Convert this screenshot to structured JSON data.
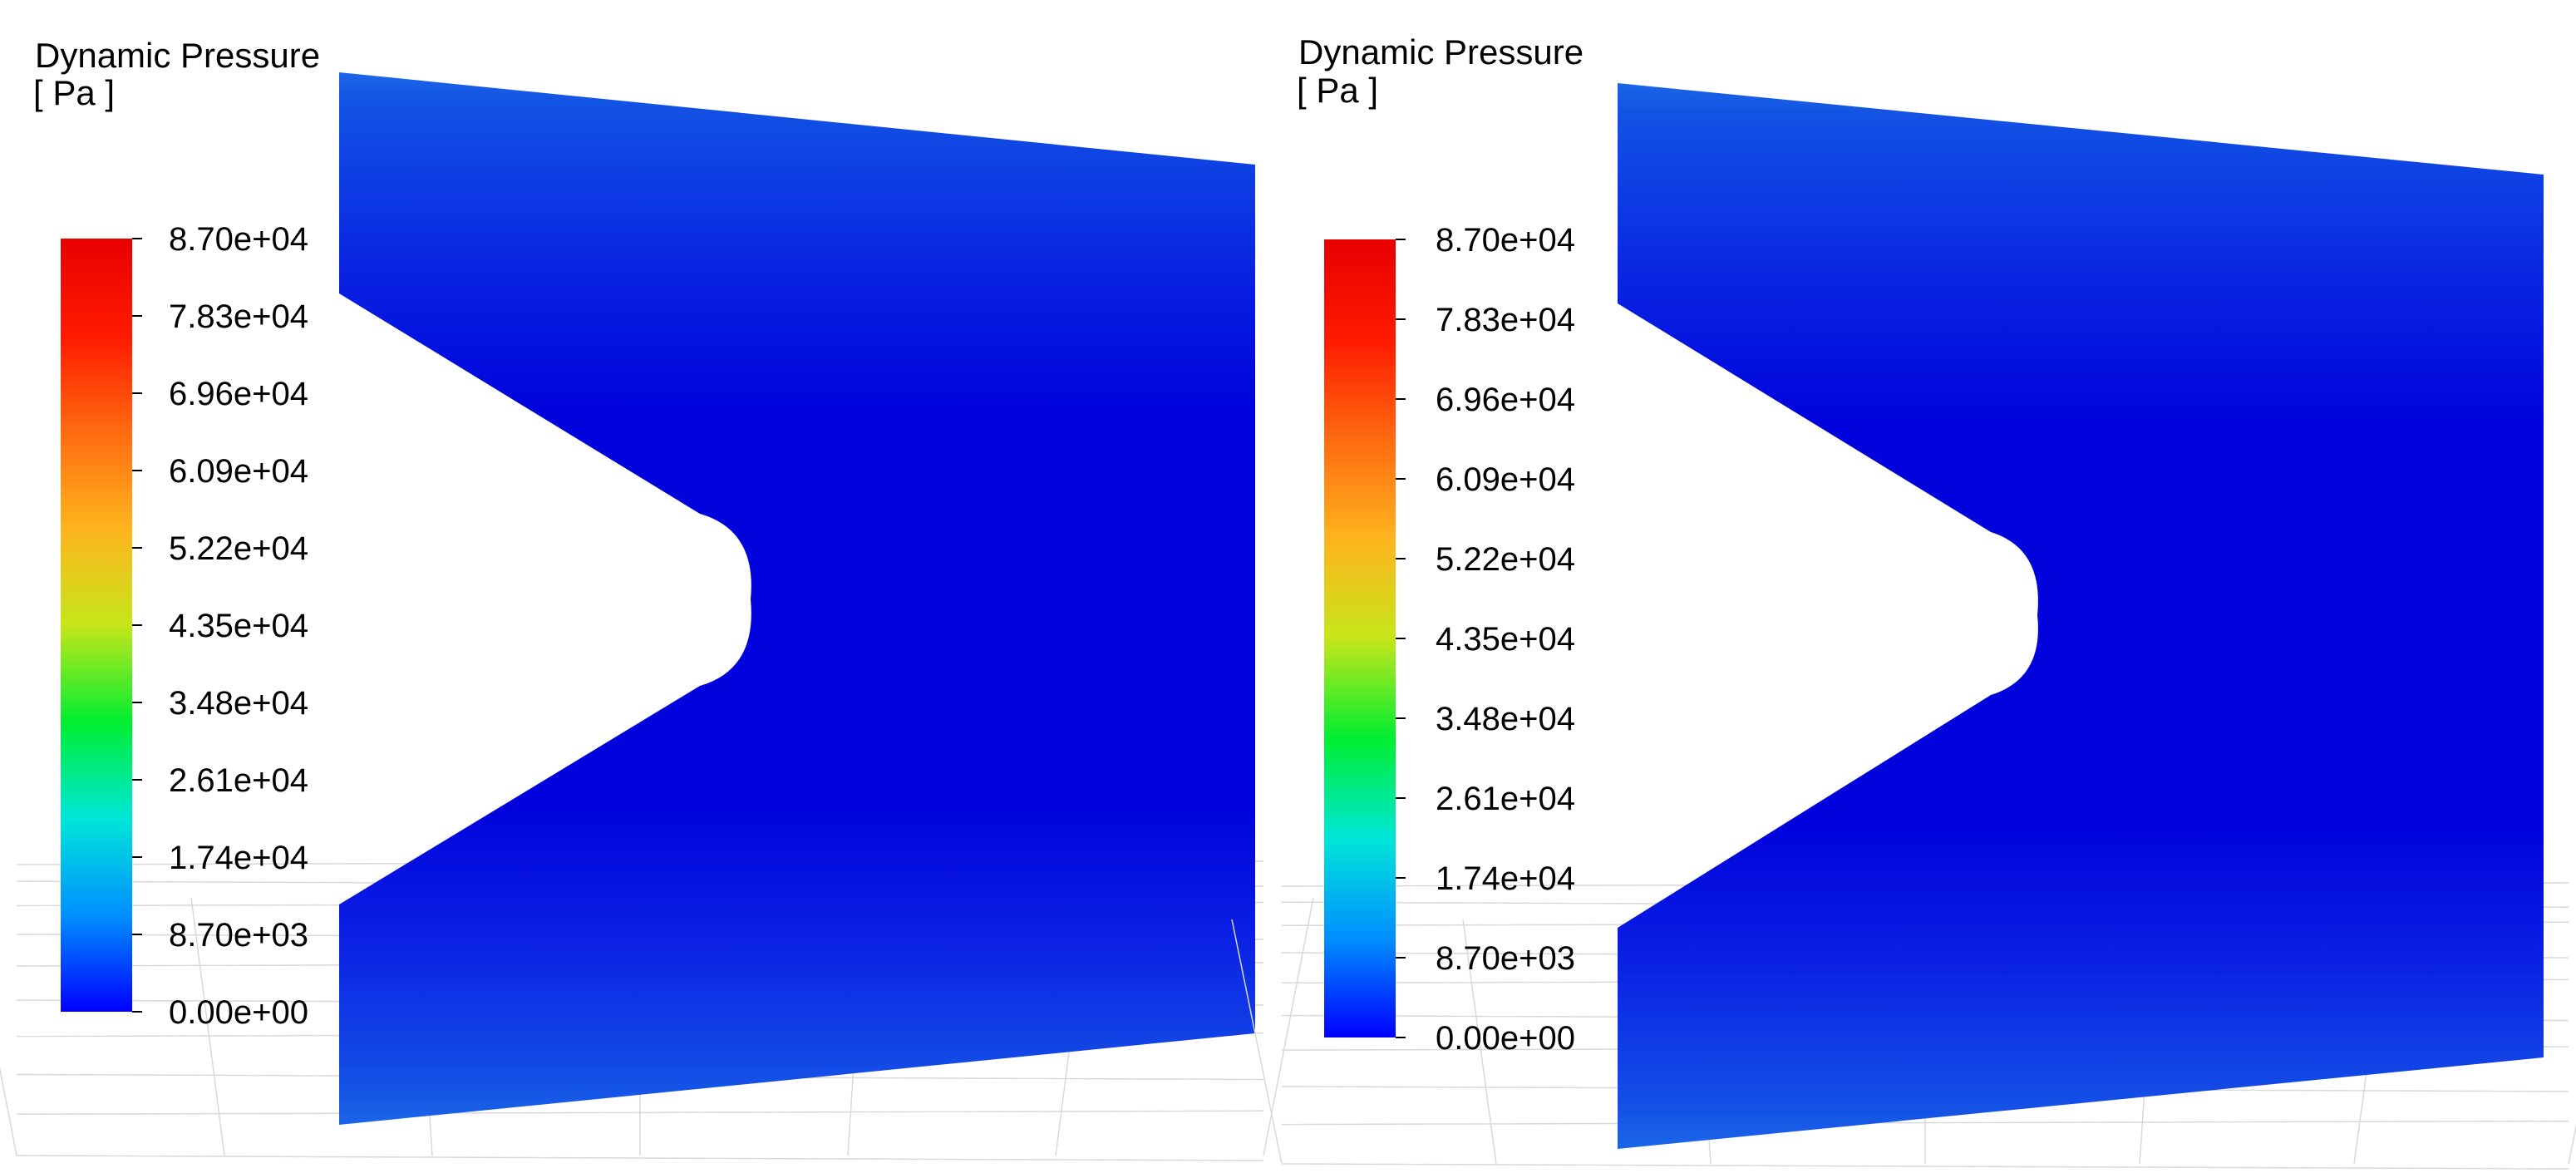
{
  "panels": [
    {
      "legend_title": "Dynamic Pressure",
      "legend_unit": "[ Pa ]"
    },
    {
      "legend_title": "Dynamic Pressure",
      "legend_unit": "[ Pa ]"
    }
  ],
  "colors": {
    "contour_body": "#0a12e8",
    "contour_edge": "#1b66e6",
    "contour_core": "#0003dc",
    "grid": "#d9d9d9",
    "colorbar_stops": [
      "#0000ff",
      "#0090ff",
      "#00e6d8",
      "#00ee30",
      "#c6e61a",
      "#ffb41e",
      "#ff6a10",
      "#ff1a00",
      "#e80000"
    ]
  },
  "chart_data": [
    {
      "type": "contour",
      "title": "Dynamic Pressure",
      "unit": "[ Pa ]",
      "colorbar": {
        "min": 0,
        "max": 87000,
        "tick_labels": [
          "8.70e+04",
          "7.83e+04",
          "6.96e+04",
          "6.09e+04",
          "5.22e+04",
          "4.35e+04",
          "3.48e+04",
          "2.61e+04",
          "1.74e+04",
          "8.70e+03",
          "0.00e+00"
        ],
        "tick_values": [
          87000,
          78300,
          69600,
          60900,
          52200,
          43500,
          34800,
          26100,
          17400,
          8700,
          0
        ]
      },
      "legend_placement": "left"
    },
    {
      "type": "contour",
      "title": "Dynamic Pressure",
      "unit": "[ Pa ]",
      "colorbar": {
        "min": 0,
        "max": 87000,
        "tick_labels": [
          "8.70e+04",
          "7.83e+04",
          "6.96e+04",
          "6.09e+04",
          "5.22e+04",
          "4.35e+04",
          "3.48e+04",
          "2.61e+04",
          "1.74e+04",
          "8.70e+03",
          "0.00e+00"
        ],
        "tick_values": [
          87000,
          78300,
          69600,
          60900,
          52200,
          43500,
          34800,
          26100,
          17400,
          8700,
          0
        ]
      },
      "legend_placement": "left"
    }
  ]
}
